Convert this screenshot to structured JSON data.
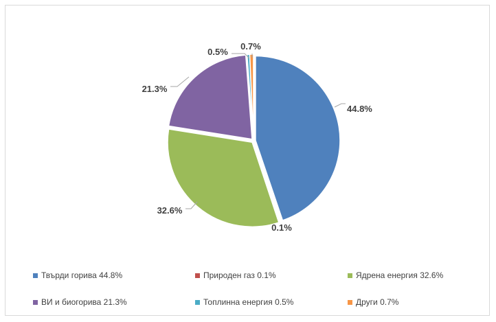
{
  "chart_data": {
    "type": "pie",
    "categories": [
      "Твърди горива",
      "Природен газ",
      "Ядрена енергия",
      "ВИ и биогорива",
      "Топлинна енергия",
      "Други"
    ],
    "values": [
      44.8,
      0.1,
      32.6,
      21.3,
      0.5,
      0.7
    ],
    "data_labels": [
      "44.8%",
      "0.1%",
      "32.6%",
      "21.3%",
      "0.5%",
      "0.7%"
    ],
    "colors": [
      "#4f81bd",
      "#c0504d",
      "#9bbb59",
      "#8064a2",
      "#4bacc6",
      "#f79646"
    ],
    "title": "",
    "legend_position": "bottom"
  },
  "legend": {
    "items": [
      {
        "label": "Твърди горива 44.8%",
        "color": "#4f81bd"
      },
      {
        "label": "Природен газ 0.1%",
        "color": "#c0504d"
      },
      {
        "label": "Ядрена енергия 32.6%",
        "color": "#9bbb59"
      },
      {
        "label": "ВИ и биогорива 21.3%",
        "color": "#8064a2"
      },
      {
        "label": "Топлинна енергия 0.5%",
        "color": "#4bacc6"
      },
      {
        "label": "Други 0.7%",
        "color": "#f79646"
      }
    ]
  }
}
